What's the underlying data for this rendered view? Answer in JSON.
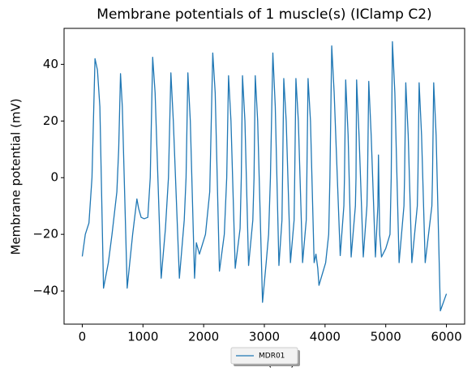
{
  "chart_data": {
    "type": "line",
    "title": "Membrane potentials of 1 muscle(s) (IClamp C2)",
    "x_label": "Time (ms)",
    "y_label": "Membrane potential (mV)",
    "x": [
      0,
      50,
      110,
      160,
      210,
      250,
      290,
      350,
      430,
      490,
      570,
      600,
      630,
      660,
      740,
      830,
      900,
      930,
      970,
      1020,
      1080,
      1120,
      1160,
      1200,
      1300,
      1370,
      1420,
      1460,
      1500,
      1600,
      1680,
      1710,
      1740,
      1780,
      1850,
      1880,
      1930,
      2030,
      2100,
      2150,
      2190,
      2260,
      2340,
      2380,
      2410,
      2450,
      2520,
      2600,
      2620,
      2640,
      2680,
      2740,
      2810,
      2830,
      2850,
      2890,
      2970,
      3030,
      3070,
      3100,
      3140,
      3180,
      3240,
      3290,
      3300,
      3320,
      3360,
      3430,
      3490,
      3500,
      3520,
      3560,
      3630,
      3690,
      3700,
      3720,
      3760,
      3820,
      3850,
      3880,
      3900,
      4010,
      4060,
      4080,
      4110,
      4150,
      4250,
      4310,
      4320,
      4340,
      4380,
      4430,
      4500,
      4510,
      4520,
      4560,
      4630,
      4690,
      4700,
      4720,
      4760,
      4830,
      4870,
      4880,
      4900,
      4930,
      5000,
      5070,
      5090,
      5110,
      5150,
      5220,
      5300,
      5310,
      5330,
      5370,
      5430,
      5520,
      5530,
      5550,
      5590,
      5650,
      5760,
      5770,
      5790,
      5830,
      5900,
      6000
    ],
    "series": [
      {
        "name": "MDR01",
        "color": "#1f77b4",
        "values": [
          -27.8,
          -20,
          -16,
          0,
          42,
          38,
          25,
          -39,
          -30,
          -20,
          -5,
          10,
          36.7,
          25,
          -39,
          -20,
          -7.5,
          -11,
          -14,
          -14.5,
          -14,
          0,
          42.5,
          30,
          -35.5,
          -18,
          0,
          37,
          20,
          -35.5,
          -15,
          0,
          37,
          20,
          -35.5,
          -23,
          -27,
          -20,
          -5,
          44,
          30,
          -33,
          -20,
          0,
          36,
          20,
          -32,
          -18,
          0,
          36,
          20,
          -31,
          -15,
          0,
          36,
          20,
          -44,
          -30,
          -20,
          0,
          44,
          25,
          -31,
          -15,
          0,
          35,
          20,
          -30,
          -15,
          0,
          35,
          20,
          -30,
          -15,
          0,
          35,
          20,
          -30,
          -27,
          -32,
          -38,
          -30,
          -20,
          0,
          46.5,
          30,
          -27.5,
          -10,
          0,
          34.5,
          15,
          -28,
          -10,
          0,
          34.5,
          15,
          -28,
          -10,
          0,
          34,
          15,
          -28,
          -10,
          8,
          -20,
          -28,
          -25,
          -20,
          0,
          48,
          30,
          -30,
          -10,
          0,
          33.5,
          15,
          -30,
          -10,
          0,
          33.5,
          15,
          -30,
          -10,
          0,
          33.5,
          15,
          -47,
          -41
        ]
      }
    ],
    "xlim": [
      -300,
      6300
    ],
    "ylim": [
      -51.7,
      52.7
    ],
    "xticks": [
      0,
      1000,
      2000,
      3000,
      4000,
      5000,
      6000
    ],
    "yticks": [
      {
        "value": -40,
        "label": "−40"
      },
      {
        "value": -20,
        "label": "−20"
      },
      0,
      20,
      40
    ],
    "legend": "lower center"
  }
}
